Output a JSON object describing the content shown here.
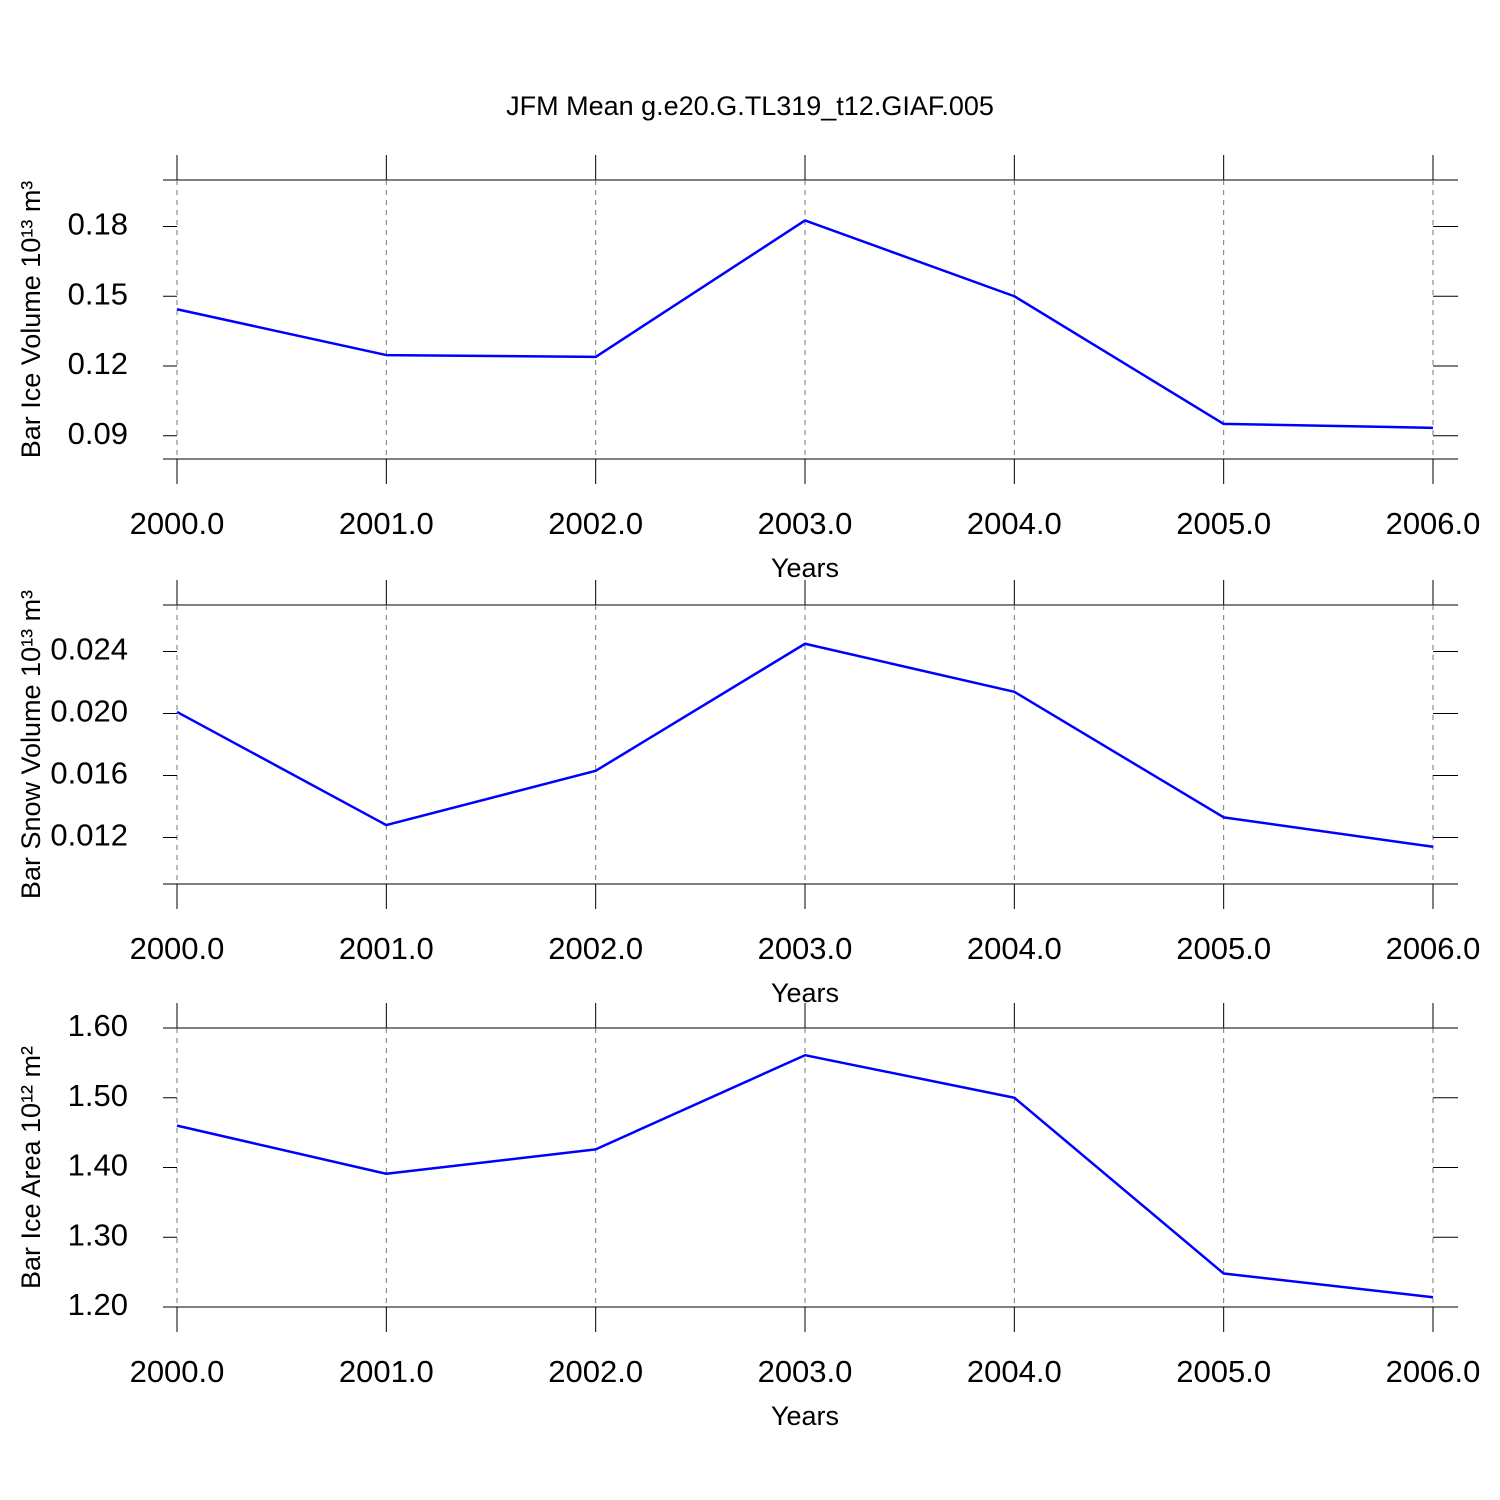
{
  "title": "JFM Mean g.e20.G.TL319_t12.GIAF.005",
  "chart_data": [
    {
      "type": "line",
      "ylabel": "Bar Ice Volume 10¹³ m³",
      "xlabel": "Years",
      "x": [
        2000,
        2001,
        2002,
        2003,
        2004,
        2005,
        2006
      ],
      "series": [
        {
          "color": "#0000ff",
          "values": [
            0.1444,
            0.1247,
            0.1239,
            0.1826,
            0.15,
            0.0951,
            0.0934
          ]
        }
      ],
      "xlim": [
        2000,
        2006
      ],
      "xticks": [
        {
          "value": 2000,
          "label": "2000.0"
        },
        {
          "value": 2001,
          "label": "2001.0"
        },
        {
          "value": 2002,
          "label": "2002.0"
        },
        {
          "value": 2003,
          "label": "2003.0"
        },
        {
          "value": 2004,
          "label": "2004.0"
        },
        {
          "value": 2005,
          "label": "2005.0"
        },
        {
          "value": 2006,
          "label": "2006.0"
        }
      ],
      "ylim": [
        0.08,
        0.2
      ],
      "yticks": [
        0.09,
        0.12,
        0.15,
        0.18
      ],
      "xgrid": true
    },
    {
      "type": "line",
      "ylabel": "Bar Snow Volume 10¹³ m³",
      "xlabel": "Years",
      "x": [
        2000,
        2001,
        2002,
        2003,
        2004,
        2005,
        2006
      ],
      "series": [
        {
          "color": "#0000ff",
          "values": [
            0.0201,
            0.0128,
            0.0163,
            0.0245,
            0.0214,
            0.0133,
            0.0114
          ]
        }
      ],
      "xlim": [
        2000,
        2006
      ],
      "xticks": [
        {
          "value": 2000,
          "label": "2000.0"
        },
        {
          "value": 2001,
          "label": "2001.0"
        },
        {
          "value": 2002,
          "label": "2002.0"
        },
        {
          "value": 2003,
          "label": "2003.0"
        },
        {
          "value": 2004,
          "label": "2004.0"
        },
        {
          "value": 2005,
          "label": "2005.0"
        },
        {
          "value": 2006,
          "label": "2006.0"
        }
      ],
      "ylim": [
        0.009,
        0.027
      ],
      "yticks": [
        0.012,
        0.016,
        {
          "value": 0.02,
          "label": "0.020"
        },
        0.024
      ],
      "xgrid": true
    },
    {
      "type": "line",
      "ylabel": "Bar Ice Area 10¹² m²",
      "xlabel": "Years",
      "x": [
        2000,
        2001,
        2002,
        2003,
        2004,
        2005,
        2006
      ],
      "series": [
        {
          "color": "#0000ff",
          "values": [
            1.46,
            1.391,
            1.426,
            1.561,
            1.5,
            1.248,
            1.214
          ]
        }
      ],
      "xlim": [
        2000,
        2006
      ],
      "xticks": [
        {
          "value": 2000,
          "label": "2000.0"
        },
        {
          "value": 2001,
          "label": "2001.0"
        },
        {
          "value": 2002,
          "label": "2002.0"
        },
        {
          "value": 2003,
          "label": "2003.0"
        },
        {
          "value": 2004,
          "label": "2004.0"
        },
        {
          "value": 2005,
          "label": "2005.0"
        },
        {
          "value": 2006,
          "label": "2006.0"
        }
      ],
      "ylim": [
        1.2,
        1.6
      ],
      "yticks": [
        {
          "value": 1.2,
          "label": "1.20"
        },
        {
          "value": 1.3,
          "label": "1.30"
        },
        {
          "value": 1.4,
          "label": "1.40"
        },
        {
          "value": 1.5,
          "label": "1.50"
        },
        {
          "value": 1.6,
          "label": "1.60"
        }
      ],
      "xgrid": true
    }
  ]
}
